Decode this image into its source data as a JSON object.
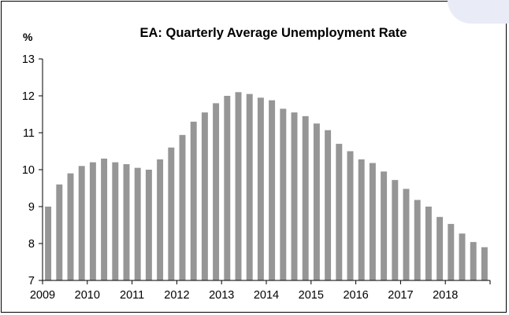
{
  "chart_data": {
    "type": "bar",
    "title": "EA: Quarterly Average Unemployment Rate",
    "ylabel": "%",
    "xlabel": "",
    "ylim": [
      7,
      13
    ],
    "yticks": [
      "7",
      "8",
      "9",
      "10",
      "11",
      "12",
      "13"
    ],
    "x_tick_labels": [
      "2009",
      "2010",
      "2011",
      "2012",
      "2013",
      "2014",
      "2015",
      "2016",
      "2017",
      "2018"
    ],
    "categories": [
      "2009 Q1",
      "2009 Q2",
      "2009 Q3",
      "2009 Q4",
      "2010 Q1",
      "2010 Q2",
      "2010 Q3",
      "2010 Q4",
      "2011 Q1",
      "2011 Q2",
      "2011 Q3",
      "2011 Q4",
      "2012 Q1",
      "2012 Q2",
      "2012 Q3",
      "2012 Q4",
      "2013 Q1",
      "2013 Q2",
      "2013 Q3",
      "2013 Q4",
      "2014 Q1",
      "2014 Q2",
      "2014 Q3",
      "2014 Q4",
      "2015 Q1",
      "2015 Q2",
      "2015 Q3",
      "2015 Q4",
      "2016 Q1",
      "2016 Q2",
      "2016 Q3",
      "2016 Q4",
      "2017 Q1",
      "2017 Q2",
      "2017 Q3",
      "2017 Q4",
      "2018 Q1",
      "2018 Q2",
      "2018 Q3",
      "2018 Q4"
    ],
    "values": [
      9.0,
      9.6,
      9.9,
      10.1,
      10.2,
      10.3,
      10.2,
      10.15,
      10.05,
      10.0,
      10.28,
      10.6,
      10.94,
      11.3,
      11.55,
      11.8,
      12.0,
      12.1,
      12.05,
      11.95,
      11.88,
      11.65,
      11.55,
      11.45,
      11.25,
      11.07,
      10.7,
      10.5,
      10.28,
      10.18,
      9.95,
      9.72,
      9.48,
      9.18,
      9.0,
      8.72,
      8.53,
      8.27,
      8.04,
      7.9
    ],
    "bar_color": "#969696",
    "grid": false,
    "legend": "none"
  }
}
